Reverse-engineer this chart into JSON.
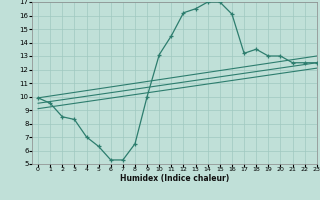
{
  "curve1_x": [
    0,
    1,
    2,
    3,
    4,
    5,
    6,
    7,
    8,
    9,
    10,
    11,
    12,
    13,
    14,
    15,
    16,
    17,
    18,
    19,
    20,
    21,
    22,
    23
  ],
  "curve1_y": [
    9.9,
    9.5,
    8.5,
    8.3,
    7.0,
    6.3,
    5.3,
    5.3,
    6.5,
    10.0,
    13.1,
    14.5,
    16.2,
    16.5,
    17.0,
    17.0,
    16.1,
    13.2,
    13.5,
    13.0,
    13.0,
    12.5,
    12.5,
    12.5
  ],
  "line2_x": [
    0,
    23
  ],
  "line2_y": [
    9.9,
    13.0
  ],
  "line3_x": [
    0,
    23
  ],
  "line3_y": [
    9.5,
    12.5
  ],
  "line4_x": [
    0,
    23
  ],
  "line4_y": [
    9.1,
    12.1
  ],
  "color": "#2d7d6e",
  "bg_color": "#c0e0d8",
  "grid_color": "#a0c8c0",
  "xlabel": "Humidex (Indice chaleur)",
  "xlim": [
    -0.5,
    23
  ],
  "ylim": [
    5,
    17
  ],
  "xticks": [
    0,
    1,
    2,
    3,
    4,
    5,
    6,
    7,
    8,
    9,
    10,
    11,
    12,
    13,
    14,
    15,
    16,
    17,
    18,
    19,
    20,
    21,
    22,
    23
  ],
  "yticks": [
    5,
    6,
    7,
    8,
    9,
    10,
    11,
    12,
    13,
    14,
    15,
    16,
    17
  ]
}
